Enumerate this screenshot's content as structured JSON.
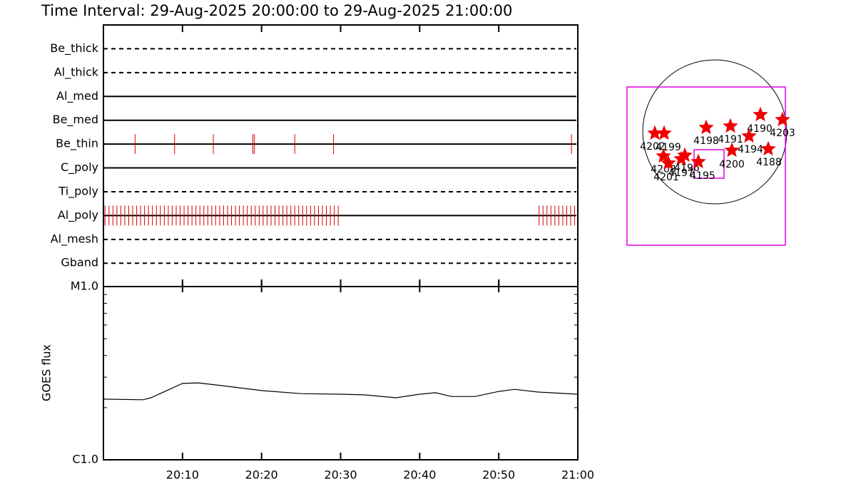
{
  "chart_data": [
    {
      "type": "timeline",
      "title": "Time Interval: 29-Aug-2025 20:00:00 to 29-Aug-2025 21:00:00",
      "xlim": [
        0,
        60
      ],
      "color": "#dd0000",
      "series": [
        {
          "name": "Be_thick",
          "style": "dashed",
          "x": []
        },
        {
          "name": "Al_thick",
          "style": "dashed",
          "x": []
        },
        {
          "name": "Al_med",
          "style": "solid",
          "x": []
        },
        {
          "name": "Be_med",
          "style": "solid",
          "x": []
        },
        {
          "name": "Be_thin",
          "style": "solid",
          "x": [
            4.0,
            9.0,
            13.9,
            18.9,
            19.1,
            24.2,
            29.1,
            59.2
          ]
        },
        {
          "name": "C_poly",
          "style": "solid",
          "x": []
        },
        {
          "name": "Ti_poly",
          "style": "dashed",
          "x": []
        },
        {
          "name": "Al_poly",
          "style": "solid",
          "x": [
            0.2,
            0.7,
            1.2,
            1.7,
            2.2,
            2.7,
            3.2,
            3.7,
            4.2,
            4.7,
            5.2,
            5.7,
            6.2,
            6.7,
            7.2,
            7.7,
            8.2,
            8.7,
            9.2,
            9.7,
            10.2,
            10.7,
            11.2,
            11.7,
            12.2,
            12.7,
            13.2,
            13.7,
            14.2,
            14.7,
            15.2,
            15.7,
            16.2,
            16.7,
            17.2,
            17.7,
            18.2,
            18.7,
            19.2,
            19.7,
            20.2,
            20.7,
            21.2,
            21.7,
            22.2,
            22.7,
            23.2,
            23.7,
            24.2,
            24.7,
            25.2,
            25.7,
            26.2,
            26.7,
            27.2,
            27.7,
            28.2,
            28.7,
            29.2,
            29.7,
            55.1,
            55.6,
            56.1,
            56.6,
            57.1,
            57.6,
            58.1,
            58.6,
            59.1,
            59.6
          ]
        },
        {
          "name": "Al_mesh",
          "style": "dashed",
          "x": []
        },
        {
          "name": "Gband",
          "style": "dashed",
          "x": []
        }
      ]
    },
    {
      "type": "line",
      "y_label": "GOES flux",
      "color": "#000000",
      "log_y": true,
      "x": [
        0,
        5,
        6,
        8,
        10,
        12,
        15,
        20,
        25,
        30,
        33,
        37,
        40,
        42,
        44,
        47,
        50,
        52,
        55,
        60
      ],
      "values": [
        2.24e-06,
        2.22e-06,
        2.28e-06,
        2.51e-06,
        2.76e-06,
        2.78e-06,
        2.68e-06,
        2.51e-06,
        2.41e-06,
        2.39e-06,
        2.37e-06,
        2.28e-06,
        2.39e-06,
        2.44e-06,
        2.32e-06,
        2.32e-06,
        2.48e-06,
        2.55e-06,
        2.46e-06,
        2.39e-06
      ],
      "xlim": [
        0,
        60
      ],
      "xticks": [
        {
          "value": 10,
          "label": "20:10"
        },
        {
          "value": 20,
          "label": "20:20"
        },
        {
          "value": 30,
          "label": "20:30"
        },
        {
          "value": 40,
          "label": "20:40"
        },
        {
          "value": 50,
          "label": "20:50"
        },
        {
          "value": 60,
          "label": "21:00"
        }
      ],
      "ylim": [
        1e-06,
        1e-05
      ],
      "yticks": [
        {
          "value": 1e-05,
          "label": "M1.0"
        },
        {
          "value": 1e-06,
          "label": "C1.0"
        }
      ],
      "minor_yticks": [
        2e-06,
        3e-06,
        4e-06,
        5e-06,
        6e-06,
        7e-06,
        8e-06,
        9e-06
      ]
    }
  ],
  "map": {
    "regions": [
      "4190",
      "4203",
      "4191",
      "4198",
      "4194",
      "4188",
      "4200",
      "4202",
      "4199",
      "4208",
      "4201",
      "4197",
      "4196",
      "4195"
    ]
  }
}
